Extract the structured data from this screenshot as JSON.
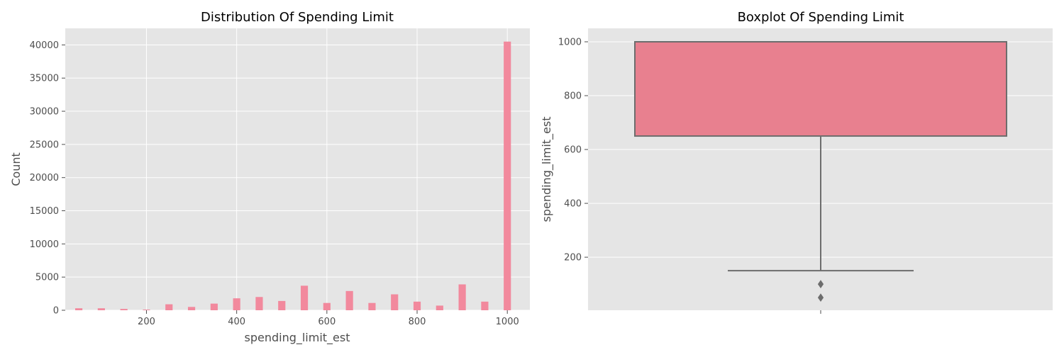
{
  "chart_data": [
    {
      "type": "histogram",
      "title": "Distribution Of Spending Limit",
      "xlabel": "spending_limit_est",
      "ylabel": "Count",
      "xlim": [
        20,
        1050
      ],
      "ylim": [
        0,
        42500
      ],
      "xticks": [
        200,
        400,
        600,
        800,
        1000
      ],
      "yticks": [
        0,
        5000,
        10000,
        15000,
        20000,
        25000,
        30000,
        35000,
        40000
      ],
      "grid": true,
      "bar_color": "#f2899d",
      "bin_width": 16,
      "bins": [
        {
          "x": 50,
          "count": 300
        },
        {
          "x": 100,
          "count": 300
        },
        {
          "x": 150,
          "count": 200
        },
        {
          "x": 200,
          "count": 100
        },
        {
          "x": 250,
          "count": 900
        },
        {
          "x": 300,
          "count": 500
        },
        {
          "x": 350,
          "count": 1000
        },
        {
          "x": 400,
          "count": 1800
        },
        {
          "x": 450,
          "count": 2000
        },
        {
          "x": 500,
          "count": 1400
        },
        {
          "x": 550,
          "count": 3700
        },
        {
          "x": 600,
          "count": 1100
        },
        {
          "x": 650,
          "count": 2900
        },
        {
          "x": 700,
          "count": 1100
        },
        {
          "x": 750,
          "count": 2400
        },
        {
          "x": 800,
          "count": 1300
        },
        {
          "x": 850,
          "count": 700
        },
        {
          "x": 900,
          "count": 3900
        },
        {
          "x": 950,
          "count": 1300
        },
        {
          "x": 1000,
          "count": 40500
        }
      ]
    },
    {
      "type": "boxplot",
      "title": "Boxplot Of Spending Limit",
      "xlabel": "",
      "ylabel": "spending_limit_est",
      "ylim": [
        3,
        1050
      ],
      "yticks": [
        200,
        400,
        600,
        800,
        1000
      ],
      "grid": true,
      "box_color": "#e8808f",
      "line_color": "#6d6d6d",
      "q1": 650,
      "median": 1000,
      "q3": 1000,
      "whisker_low": 150,
      "whisker_high": 1000,
      "outliers": [
        100,
        50
      ]
    }
  ]
}
